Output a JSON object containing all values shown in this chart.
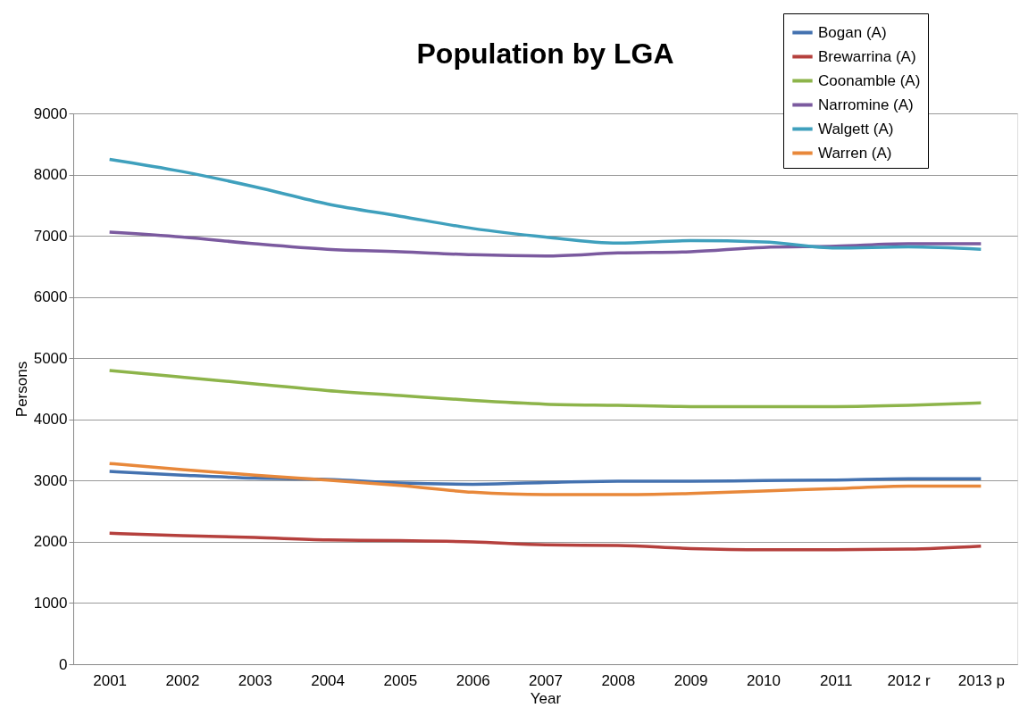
{
  "chart_data": {
    "type": "line",
    "title": "Population by LGA",
    "xlabel": "Year",
    "ylabel": "Persons",
    "categories": [
      "2001",
      "2002",
      "2003",
      "2004",
      "2005",
      "2006",
      "2007",
      "2008",
      "2009",
      "2010",
      "2011",
      "2012 r",
      "2013 p"
    ],
    "series": [
      {
        "name": "Bogan (A)",
        "color": "#4472b0",
        "values": [
          3150,
          3090,
          3040,
          3020,
          2960,
          2940,
          2970,
          2990,
          2990,
          3000,
          3010,
          3030,
          3030
        ]
      },
      {
        "name": "Brewarrina (A)",
        "color": "#b5403d",
        "values": [
          2140,
          2100,
          2070,
          2030,
          2020,
          2000,
          1950,
          1940,
          1890,
          1870,
          1870,
          1880,
          1930
        ]
      },
      {
        "name": "Coonamble (A)",
        "color": "#8db44a",
        "values": [
          4800,
          4690,
          4580,
          4470,
          4390,
          4310,
          4250,
          4230,
          4210,
          4210,
          4210,
          4230,
          4270
        ]
      },
      {
        "name": "Narromine (A)",
        "color": "#7b5a9f",
        "values": [
          7060,
          6980,
          6870,
          6780,
          6740,
          6690,
          6670,
          6720,
          6740,
          6810,
          6830,
          6870,
          6870
        ]
      },
      {
        "name": "Walgett (A)",
        "color": "#3fa0bd",
        "values": [
          8250,
          8050,
          7800,
          7520,
          7320,
          7120,
          6980,
          6880,
          6920,
          6900,
          6800,
          6820,
          6780
        ]
      },
      {
        "name": "Warren (A)",
        "color": "#e8883a",
        "values": [
          3280,
          3180,
          3090,
          3010,
          2920,
          2810,
          2770,
          2770,
          2790,
          2830,
          2870,
          2910,
          2910
        ]
      }
    ],
    "ylim": [
      0,
      9000
    ],
    "yticks": [
      0,
      1000,
      2000,
      3000,
      4000,
      5000,
      6000,
      7000,
      8000,
      9000
    ],
    "grid": "y",
    "legend": "top right",
    "line_style": "solid",
    "marker": "none"
  }
}
